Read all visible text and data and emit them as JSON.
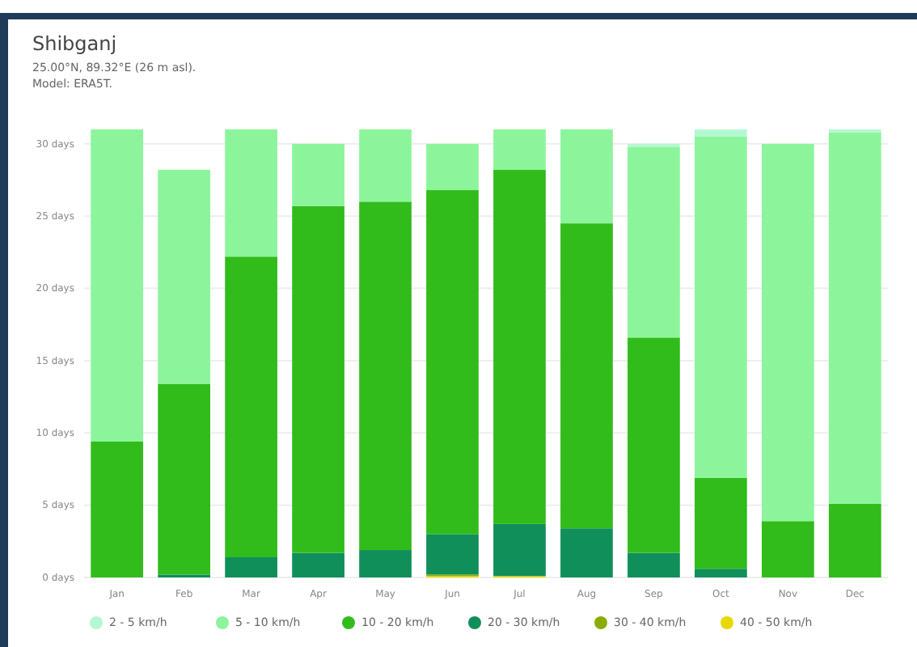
{
  "chart_data": {
    "type": "bar",
    "title": "Shibganj",
    "subtitle": "25.00°N, 89.32°E (26 m asl).\nModel: ERA5T.",
    "categories": [
      "Jan",
      "Feb",
      "Mar",
      "Apr",
      "May",
      "Jun",
      "Jul",
      "Aug",
      "Sep",
      "Oct",
      "Nov",
      "Dec"
    ],
    "stacked": true,
    "ylim": [
      0,
      31
    ],
    "yticks": [
      {
        "value": 0,
        "label": "0 days"
      },
      {
        "value": 5,
        "label": "5 days"
      },
      {
        "value": 10,
        "label": "10 days"
      },
      {
        "value": 15,
        "label": "15 days"
      },
      {
        "value": 20,
        "label": "20 days"
      },
      {
        "value": 25,
        "label": "25 days"
      },
      {
        "value": 30,
        "label": "30 days"
      }
    ],
    "grid": "y",
    "legend": "bottom",
    "series": [
      {
        "name": "40 - 50 km/h",
        "color": "#e6d800",
        "values": [
          0,
          0,
          0,
          0,
          0,
          0.1,
          0.1,
          0,
          0,
          0,
          0,
          0
        ]
      },
      {
        "name": "30 - 40 km/h",
        "color": "#8aac00",
        "values": [
          0,
          0,
          0,
          0,
          0,
          0.1,
          0,
          0,
          0,
          0,
          0,
          0
        ]
      },
      {
        "name": "20 - 30 km/h",
        "color": "#108f5a",
        "values": [
          0,
          0.2,
          1.4,
          1.7,
          1.9,
          2.8,
          3.6,
          3.4,
          1.7,
          0.6,
          0,
          0
        ]
      },
      {
        "name": "10 - 20 km/h",
        "color": "#31bc1c",
        "values": [
          9.4,
          13.2,
          20.8,
          24.0,
          24.1,
          23.8,
          24.5,
          21.1,
          14.9,
          6.3,
          3.9,
          5.1
        ]
      },
      {
        "name": "5 - 10 km/h",
        "color": "#8cf59b",
        "values": [
          21.6,
          14.8,
          8.8,
          4.3,
          5.0,
          3.2,
          2.8,
          6.5,
          13.2,
          23.6,
          26.1,
          25.7
        ]
      },
      {
        "name": "2 - 5 km/h",
        "color": "#b4f8d2",
        "values": [
          0,
          0,
          0,
          0,
          0,
          0,
          0,
          0,
          0.2,
          0.5,
          0,
          0.2
        ]
      }
    ]
  }
}
